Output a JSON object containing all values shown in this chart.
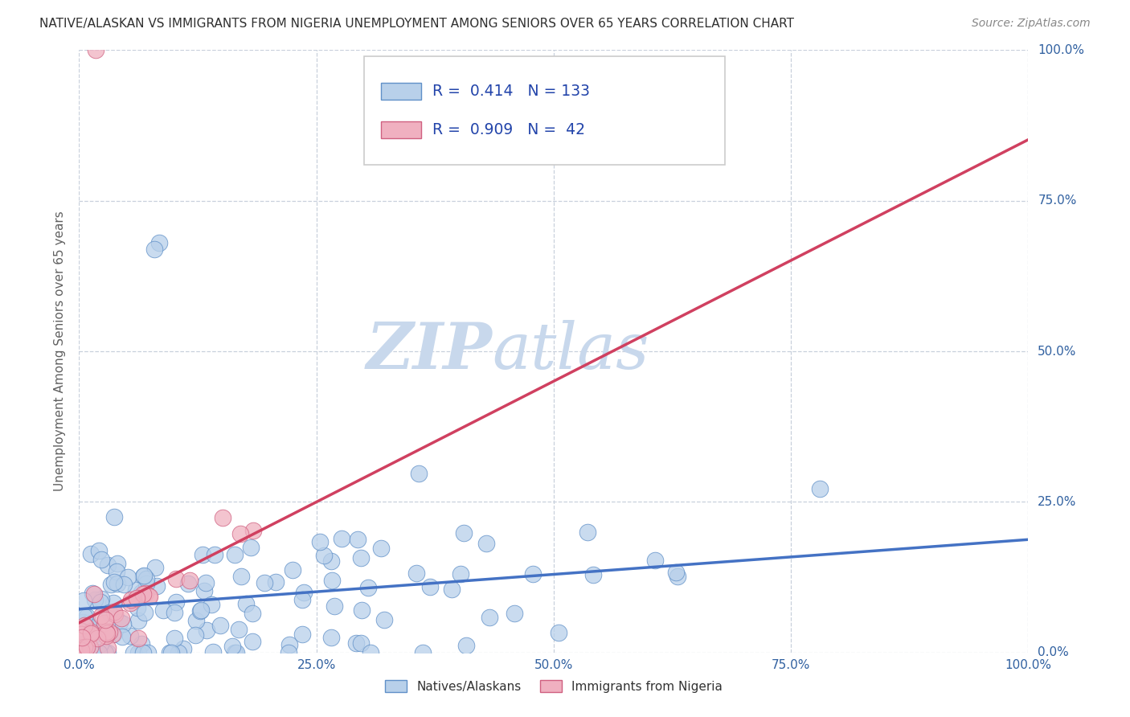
{
  "title": "NATIVE/ALASKAN VS IMMIGRANTS FROM NIGERIA UNEMPLOYMENT AMONG SENIORS OVER 65 YEARS CORRELATION CHART",
  "source": "Source: ZipAtlas.com",
  "ylabel": "Unemployment Among Seniors over 65 years",
  "ytick_labels": [
    "0.0%",
    "25.0%",
    "50.0%",
    "75.0%",
    "100.0%"
  ],
  "xtick_labels": [
    "0.0%",
    "25.0%",
    "50.0%",
    "75.0%",
    "100.0%"
  ],
  "blue_R": 0.414,
  "blue_N": 133,
  "pink_R": 0.909,
  "pink_N": 42,
  "blue_color": "#b8d0ea",
  "blue_edge_color": "#6090c8",
  "blue_line_color": "#4472c4",
  "pink_color": "#f0b0c0",
  "pink_edge_color": "#d06080",
  "pink_line_color": "#d04060",
  "legend_label_blue": "Natives/Alaskans",
  "legend_label_pink": "Immigrants from Nigeria",
  "watermark_zip": "ZIP",
  "watermark_atlas": "atlas",
  "watermark_color": "#c8d8ec",
  "background_color": "#ffffff",
  "title_color": "#303030",
  "axis_color": "#606060",
  "grid_color": "#c8d0dc",
  "label_color": "#3060a0",
  "legend_text_color": "#2244aa",
  "source_color": "#888888"
}
